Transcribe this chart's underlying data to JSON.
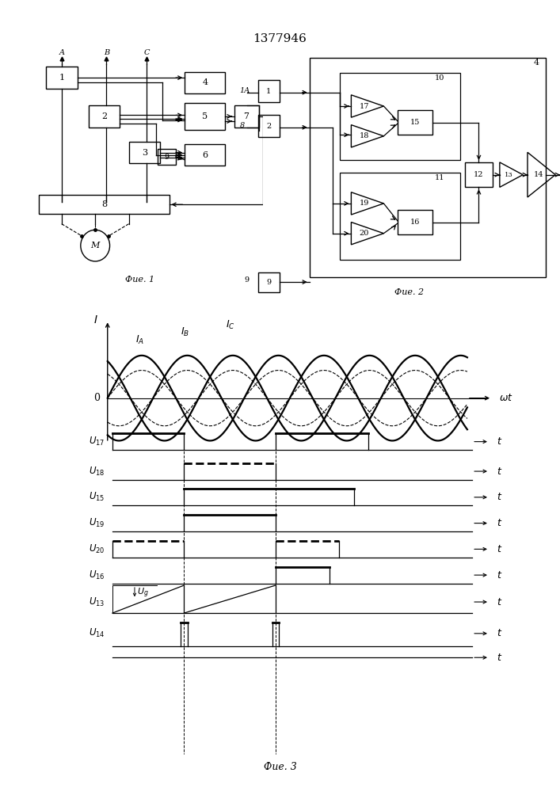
{
  "title": "1377946",
  "fig1_label": "Фие. 1",
  "fig2_label": "Фие. 2",
  "fig3_label": "Фие. 3",
  "bg_color": "#ffffff"
}
